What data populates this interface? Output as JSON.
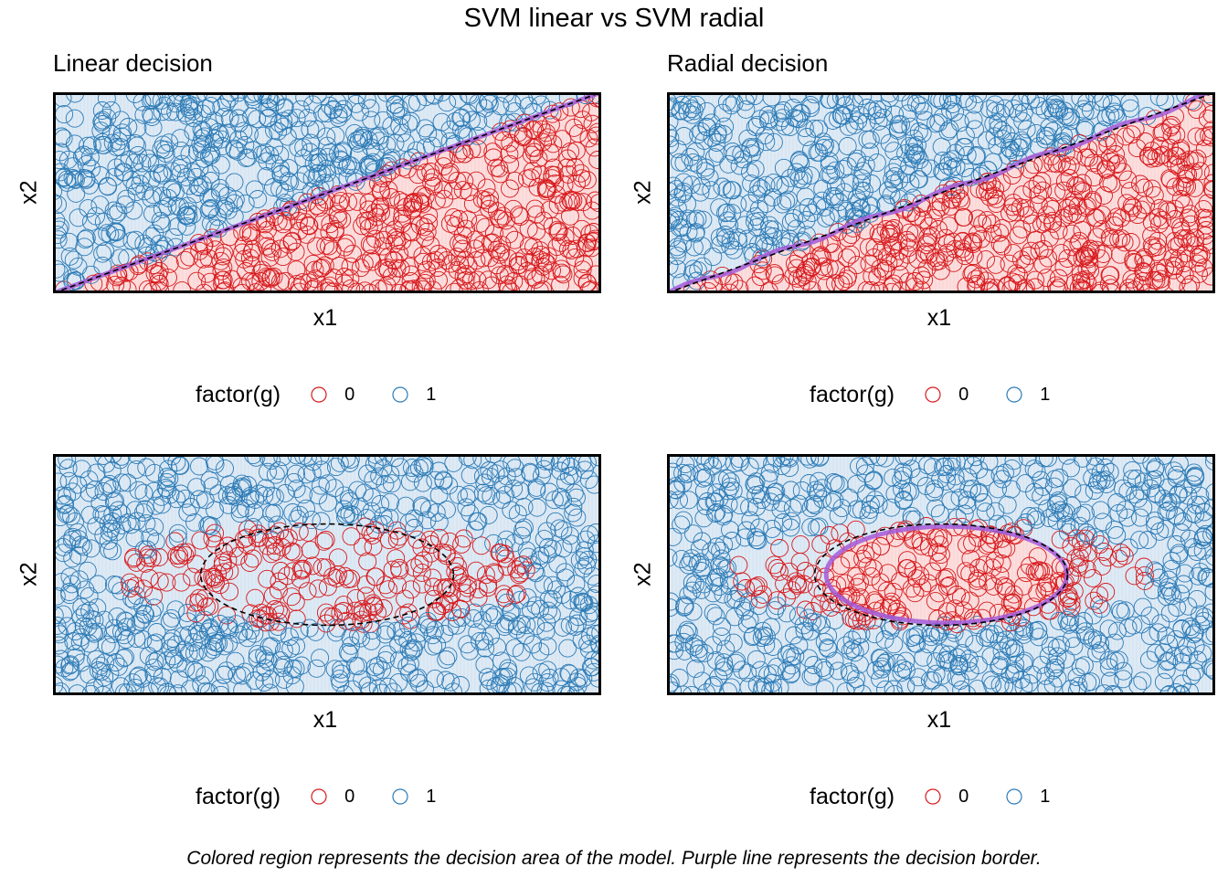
{
  "title": "SVM linear vs SVM radial",
  "caption": "Colored region represents the decision area of the model. Purple line represents the decision border.",
  "colors": {
    "class0": "#d7191c",
    "class1": "#2c7bb6",
    "fill0": "#fbd8d8",
    "fill1": "#d8e6f3",
    "border": "#a35bd8",
    "truth": "#000000"
  },
  "legend": {
    "title": "factor(g)",
    "labels": [
      "0",
      "1"
    ]
  },
  "chart_data": [
    {
      "type": "scatter",
      "title": "Linear decision",
      "xlabel": "x1",
      "ylabel": "x2",
      "xlim": [
        0,
        1
      ],
      "ylim": [
        0,
        1
      ],
      "true_boundary": {
        "shape": "line",
        "y_at_x0": 0.0,
        "y_at_x1": 1.0
      },
      "decision_boundary": {
        "shape": "line",
        "y_at_x0": 0.0,
        "y_at_x1": 1.0
      },
      "class0_region": "below line",
      "n_points_approx": 1000
    },
    {
      "type": "scatter",
      "title": "Radial decision",
      "xlabel": "x1",
      "ylabel": "x2",
      "xlim": [
        0,
        1
      ],
      "ylim": [
        0,
        1
      ],
      "true_boundary": {
        "shape": "line",
        "y_at_x0": 0.0,
        "y_at_x1": 1.0
      },
      "decision_boundary": {
        "shape": "curve",
        "y_at_x0": 0.0,
        "y_at_x1": 1.0
      },
      "class0_region": "below line",
      "n_points_approx": 1000
    },
    {
      "type": "scatter",
      "title": "",
      "xlabel": "x1",
      "ylabel": "x2",
      "xlim": [
        0,
        1
      ],
      "ylim": [
        0,
        1
      ],
      "true_boundary": {
        "shape": "ellipse",
        "cx": 0.5,
        "cy": 0.5,
        "rx": 0.21,
        "ry": 0.21
      },
      "decision_boundary": null,
      "class0_region": "inside ellipse",
      "n_points_approx": 1000
    },
    {
      "type": "scatter",
      "title": "",
      "xlabel": "x1",
      "ylabel": "x2",
      "xlim": [
        0,
        1
      ],
      "ylim": [
        0,
        1
      ],
      "true_boundary": {
        "shape": "ellipse",
        "cx": 0.5,
        "cy": 0.5,
        "rx": 0.21,
        "ry": 0.21
      },
      "decision_boundary": {
        "shape": "ellipse",
        "cx": 0.51,
        "cy": 0.5,
        "rx": 0.2,
        "ry": 0.2
      },
      "class0_region": "inside ellipse",
      "n_points_approx": 1000
    }
  ]
}
